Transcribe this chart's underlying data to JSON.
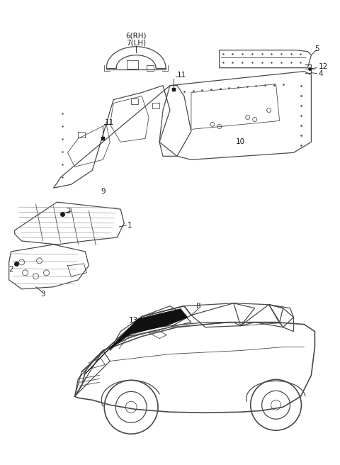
{
  "bg_color": "#ffffff",
  "line_color": "#4a4a4a",
  "dark_color": "#1a1a1a",
  "fig_width": 4.8,
  "fig_height": 6.56,
  "dpi": 100
}
